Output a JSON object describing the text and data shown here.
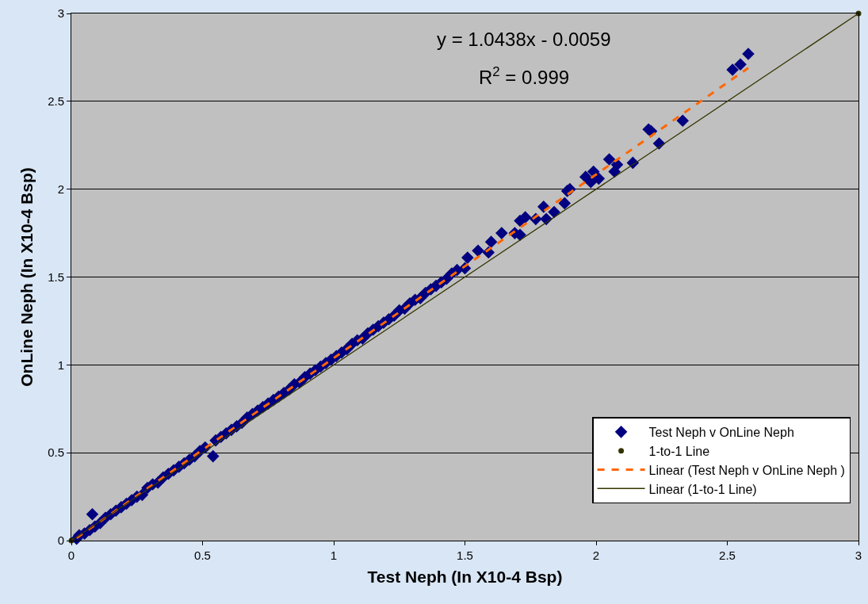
{
  "chart_data": {
    "type": "scatter",
    "xlabel": "Test Neph (In X10-4 Bsp)",
    "ylabel": "OnLine Neph (In X10-4 Bsp)",
    "annotations": [
      "y = 1.0438x - 0.0059",
      "R$^{2}$ = 0.999"
    ],
    "xlim": [
      0,
      3
    ],
    "xticks": [
      0,
      0.5,
      1,
      1.5,
      2,
      2.5,
      3
    ],
    "ylim": [
      0,
      3
    ],
    "yticks": [
      0,
      0.5,
      1,
      1.5,
      2,
      2.5,
      3
    ],
    "grid": "y",
    "legend": "bottom right",
    "series": [
      {
        "name": "Test Neph v OnLine Neph",
        "marker": "diamond",
        "color": "#000080",
        "x": [
          0.02,
          0.03,
          0.05,
          0.07,
          0.08,
          0.09,
          0.11,
          0.13,
          0.15,
          0.17,
          0.19,
          0.21,
          0.23,
          0.25,
          0.27,
          0.29,
          0.31,
          0.33,
          0.35,
          0.37,
          0.39,
          0.41,
          0.43,
          0.45,
          0.47,
          0.49,
          0.51,
          0.54,
          0.55,
          0.57,
          0.59,
          0.61,
          0.63,
          0.65,
          0.67,
          0.69,
          0.71,
          0.73,
          0.75,
          0.77,
          0.79,
          0.81,
          0.83,
          0.85,
          0.87,
          0.89,
          0.91,
          0.93,
          0.95,
          0.97,
          0.99,
          1.01,
          1.03,
          1.05,
          1.07,
          1.09,
          1.11,
          1.13,
          1.15,
          1.17,
          1.19,
          1.21,
          1.23,
          1.25,
          1.27,
          1.29,
          1.31,
          1.33,
          1.35,
          1.37,
          1.39,
          1.41,
          1.43,
          1.45,
          1.47,
          1.5,
          1.51,
          1.55,
          1.59,
          1.6,
          1.64,
          1.69,
          1.71,
          1.71,
          1.73,
          1.77,
          1.8,
          1.81,
          1.84,
          1.88,
          1.89,
          1.9,
          1.96,
          1.98,
          1.99,
          2.01,
          2.05,
          2.07,
          2.08,
          2.14,
          2.2,
          2.21,
          2.24,
          2.33,
          2.52,
          2.55,
          2.58
        ],
        "values": [
          0.01,
          0.03,
          0.04,
          0.06,
          0.15,
          0.08,
          0.1,
          0.13,
          0.15,
          0.17,
          0.19,
          0.21,
          0.23,
          0.25,
          0.26,
          0.3,
          0.32,
          0.33,
          0.36,
          0.38,
          0.4,
          0.42,
          0.44,
          0.46,
          0.48,
          0.51,
          0.53,
          0.48,
          0.57,
          0.59,
          0.61,
          0.63,
          0.65,
          0.67,
          0.7,
          0.72,
          0.74,
          0.76,
          0.78,
          0.8,
          0.82,
          0.84,
          0.86,
          0.89,
          0.9,
          0.93,
          0.95,
          0.97,
          0.99,
          1.01,
          1.03,
          1.05,
          1.07,
          1.09,
          1.12,
          1.14,
          1.15,
          1.18,
          1.2,
          1.22,
          1.24,
          1.26,
          1.28,
          1.31,
          1.32,
          1.35,
          1.37,
          1.38,
          1.41,
          1.43,
          1.45,
          1.47,
          1.49,
          1.52,
          1.54,
          1.55,
          1.61,
          1.65,
          1.64,
          1.7,
          1.75,
          1.75,
          1.82,
          1.74,
          1.84,
          1.83,
          1.9,
          1.83,
          1.87,
          1.92,
          1.99,
          2.0,
          2.07,
          2.04,
          2.1,
          2.06,
          2.17,
          2.1,
          2.14,
          2.15,
          2.34,
          2.33,
          2.26,
          2.39,
          2.68,
          2.71,
          2.77
        ]
      },
      {
        "name": "1-to-1 Line",
        "type": "scatter",
        "marker": "circle",
        "color": "#333300",
        "x": [
          0,
          3
        ],
        "values": [
          0,
          3
        ]
      },
      {
        "name": "Linear (Test Neph v OnLine Neph )",
        "type": "line",
        "line_style": "dashed",
        "color": "#ff6600",
        "x": [
          0.02,
          2.58
        ],
        "values": [
          0.015,
          2.69
        ]
      },
      {
        "name": "Linear (1-to-1 Line)",
        "type": "line",
        "line_style": "solid",
        "color": "#333300",
        "x": [
          0,
          3
        ],
        "values": [
          0,
          3
        ]
      }
    ]
  }
}
